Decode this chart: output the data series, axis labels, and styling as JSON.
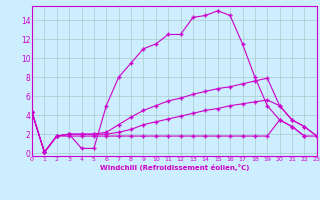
{
  "xlabel": "Windchill (Refroidissement éolien,°C)",
  "background_color": "#cceeff",
  "line_color": "#cc00cc",
  "grid_color": "#aacccc",
  "x_ticks": [
    0,
    1,
    2,
    3,
    4,
    5,
    6,
    7,
    8,
    9,
    10,
    11,
    12,
    13,
    14,
    15,
    16,
    17,
    18,
    19,
    20,
    21,
    22,
    23
  ],
  "y_ticks": [
    0,
    2,
    4,
    6,
    8,
    10,
    12,
    14
  ],
  "xlim": [
    0,
    23
  ],
  "ylim": [
    -0.3,
    15.5
  ],
  "series": [
    {
      "x": [
        0,
        1,
        2,
        3,
        4,
        5,
        6,
        7,
        8,
        9,
        10,
        11,
        12,
        13,
        14,
        15,
        16,
        17,
        18,
        19,
        20,
        21,
        22,
        23
      ],
      "y": [
        4.3,
        0.1,
        1.8,
        2.0,
        0.5,
        0.5,
        5.0,
        8.0,
        9.5,
        11.0,
        11.5,
        12.5,
        12.5,
        14.3,
        14.5,
        15.0,
        14.5,
        11.5,
        8.0,
        5.0,
        3.5,
        2.8,
        1.8,
        null
      ]
    },
    {
      "x": [
        0,
        1,
        2,
        3,
        4,
        5,
        6,
        7,
        8,
        9,
        10,
        11,
        12,
        13,
        14,
        15,
        16,
        17,
        18,
        19,
        20,
        21,
        22,
        23
      ],
      "y": [
        4.3,
        0.1,
        1.8,
        2.0,
        2.0,
        2.0,
        2.2,
        3.0,
        3.8,
        4.5,
        5.0,
        5.5,
        5.8,
        6.2,
        6.5,
        6.8,
        7.0,
        7.3,
        7.6,
        7.9,
        5.0,
        3.5,
        2.8,
        1.8
      ]
    },
    {
      "x": [
        0,
        1,
        2,
        3,
        4,
        5,
        6,
        7,
        8,
        9,
        10,
        11,
        12,
        13,
        14,
        15,
        16,
        17,
        18,
        19,
        20,
        21,
        22,
        23
      ],
      "y": [
        4.3,
        0.1,
        1.8,
        2.0,
        2.0,
        2.0,
        2.0,
        2.2,
        2.5,
        3.0,
        3.3,
        3.6,
        3.9,
        4.2,
        4.5,
        4.7,
        5.0,
        5.2,
        5.4,
        5.6,
        5.0,
        3.5,
        2.8,
        1.8
      ]
    },
    {
      "x": [
        0,
        1,
        2,
        3,
        4,
        5,
        6,
        7,
        8,
        9,
        10,
        11,
        12,
        13,
        14,
        15,
        16,
        17,
        18,
        19,
        20,
        21,
        22,
        23
      ],
      "y": [
        4.3,
        0.1,
        1.8,
        1.8,
        1.8,
        1.8,
        1.8,
        1.8,
        1.8,
        1.8,
        1.8,
        1.8,
        1.8,
        1.8,
        1.8,
        1.8,
        1.8,
        1.8,
        1.8,
        1.8,
        3.5,
        2.8,
        1.8,
        1.8
      ]
    }
  ]
}
